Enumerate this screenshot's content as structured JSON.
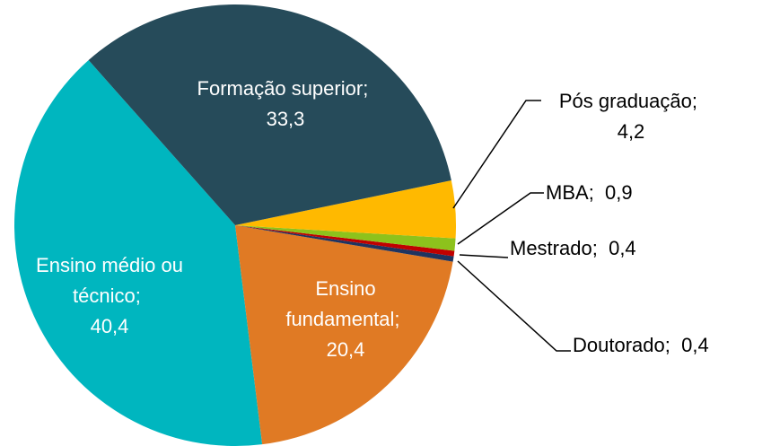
{
  "chart_data": {
    "type": "pie",
    "categories": [
      "Formação superior",
      "Pós graduação",
      "MBA",
      "Mestrado",
      "Doutorado",
      "Ensino fundamental",
      "Ensino médio ou técnico"
    ],
    "values": [
      33.3,
      4.2,
      0.9,
      0.4,
      0.4,
      20.4,
      40.4
    ],
    "value_labels": [
      "33,3",
      "4,2",
      "0,9",
      "0,4",
      "0,4",
      "20,4",
      "40,4"
    ],
    "label_separator": ";",
    "colors": [
      "#264b5a",
      "#ffb900",
      "#8dc21c",
      "#c00000",
      "#1f3460",
      "#e07a24",
      "#00b6bf"
    ]
  }
}
